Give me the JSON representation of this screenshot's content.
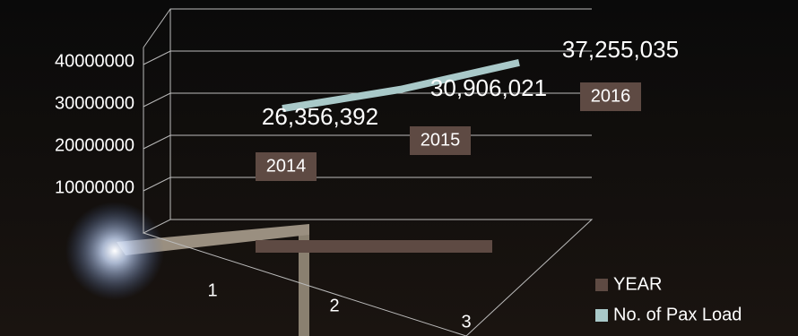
{
  "chart_data": {
    "type": "line3d",
    "categories": [
      "1",
      "2",
      "3"
    ],
    "series": [
      {
        "name": "YEAR",
        "color": "#5e4a43",
        "values": [
          2014,
          2015,
          2016
        ]
      },
      {
        "name": "No. of Pax Load",
        "color": "#a9c9c9",
        "values": [
          26356392,
          30906021,
          37255035
        ],
        "value_labels": [
          "26,356,392",
          "30,906,021",
          "37,255,035"
        ]
      }
    ],
    "ylim": [
      0,
      50000000
    ],
    "yticks": [
      10000000,
      20000000,
      30000000,
      40000000
    ],
    "grid": true,
    "legend": "bottom-right"
  }
}
